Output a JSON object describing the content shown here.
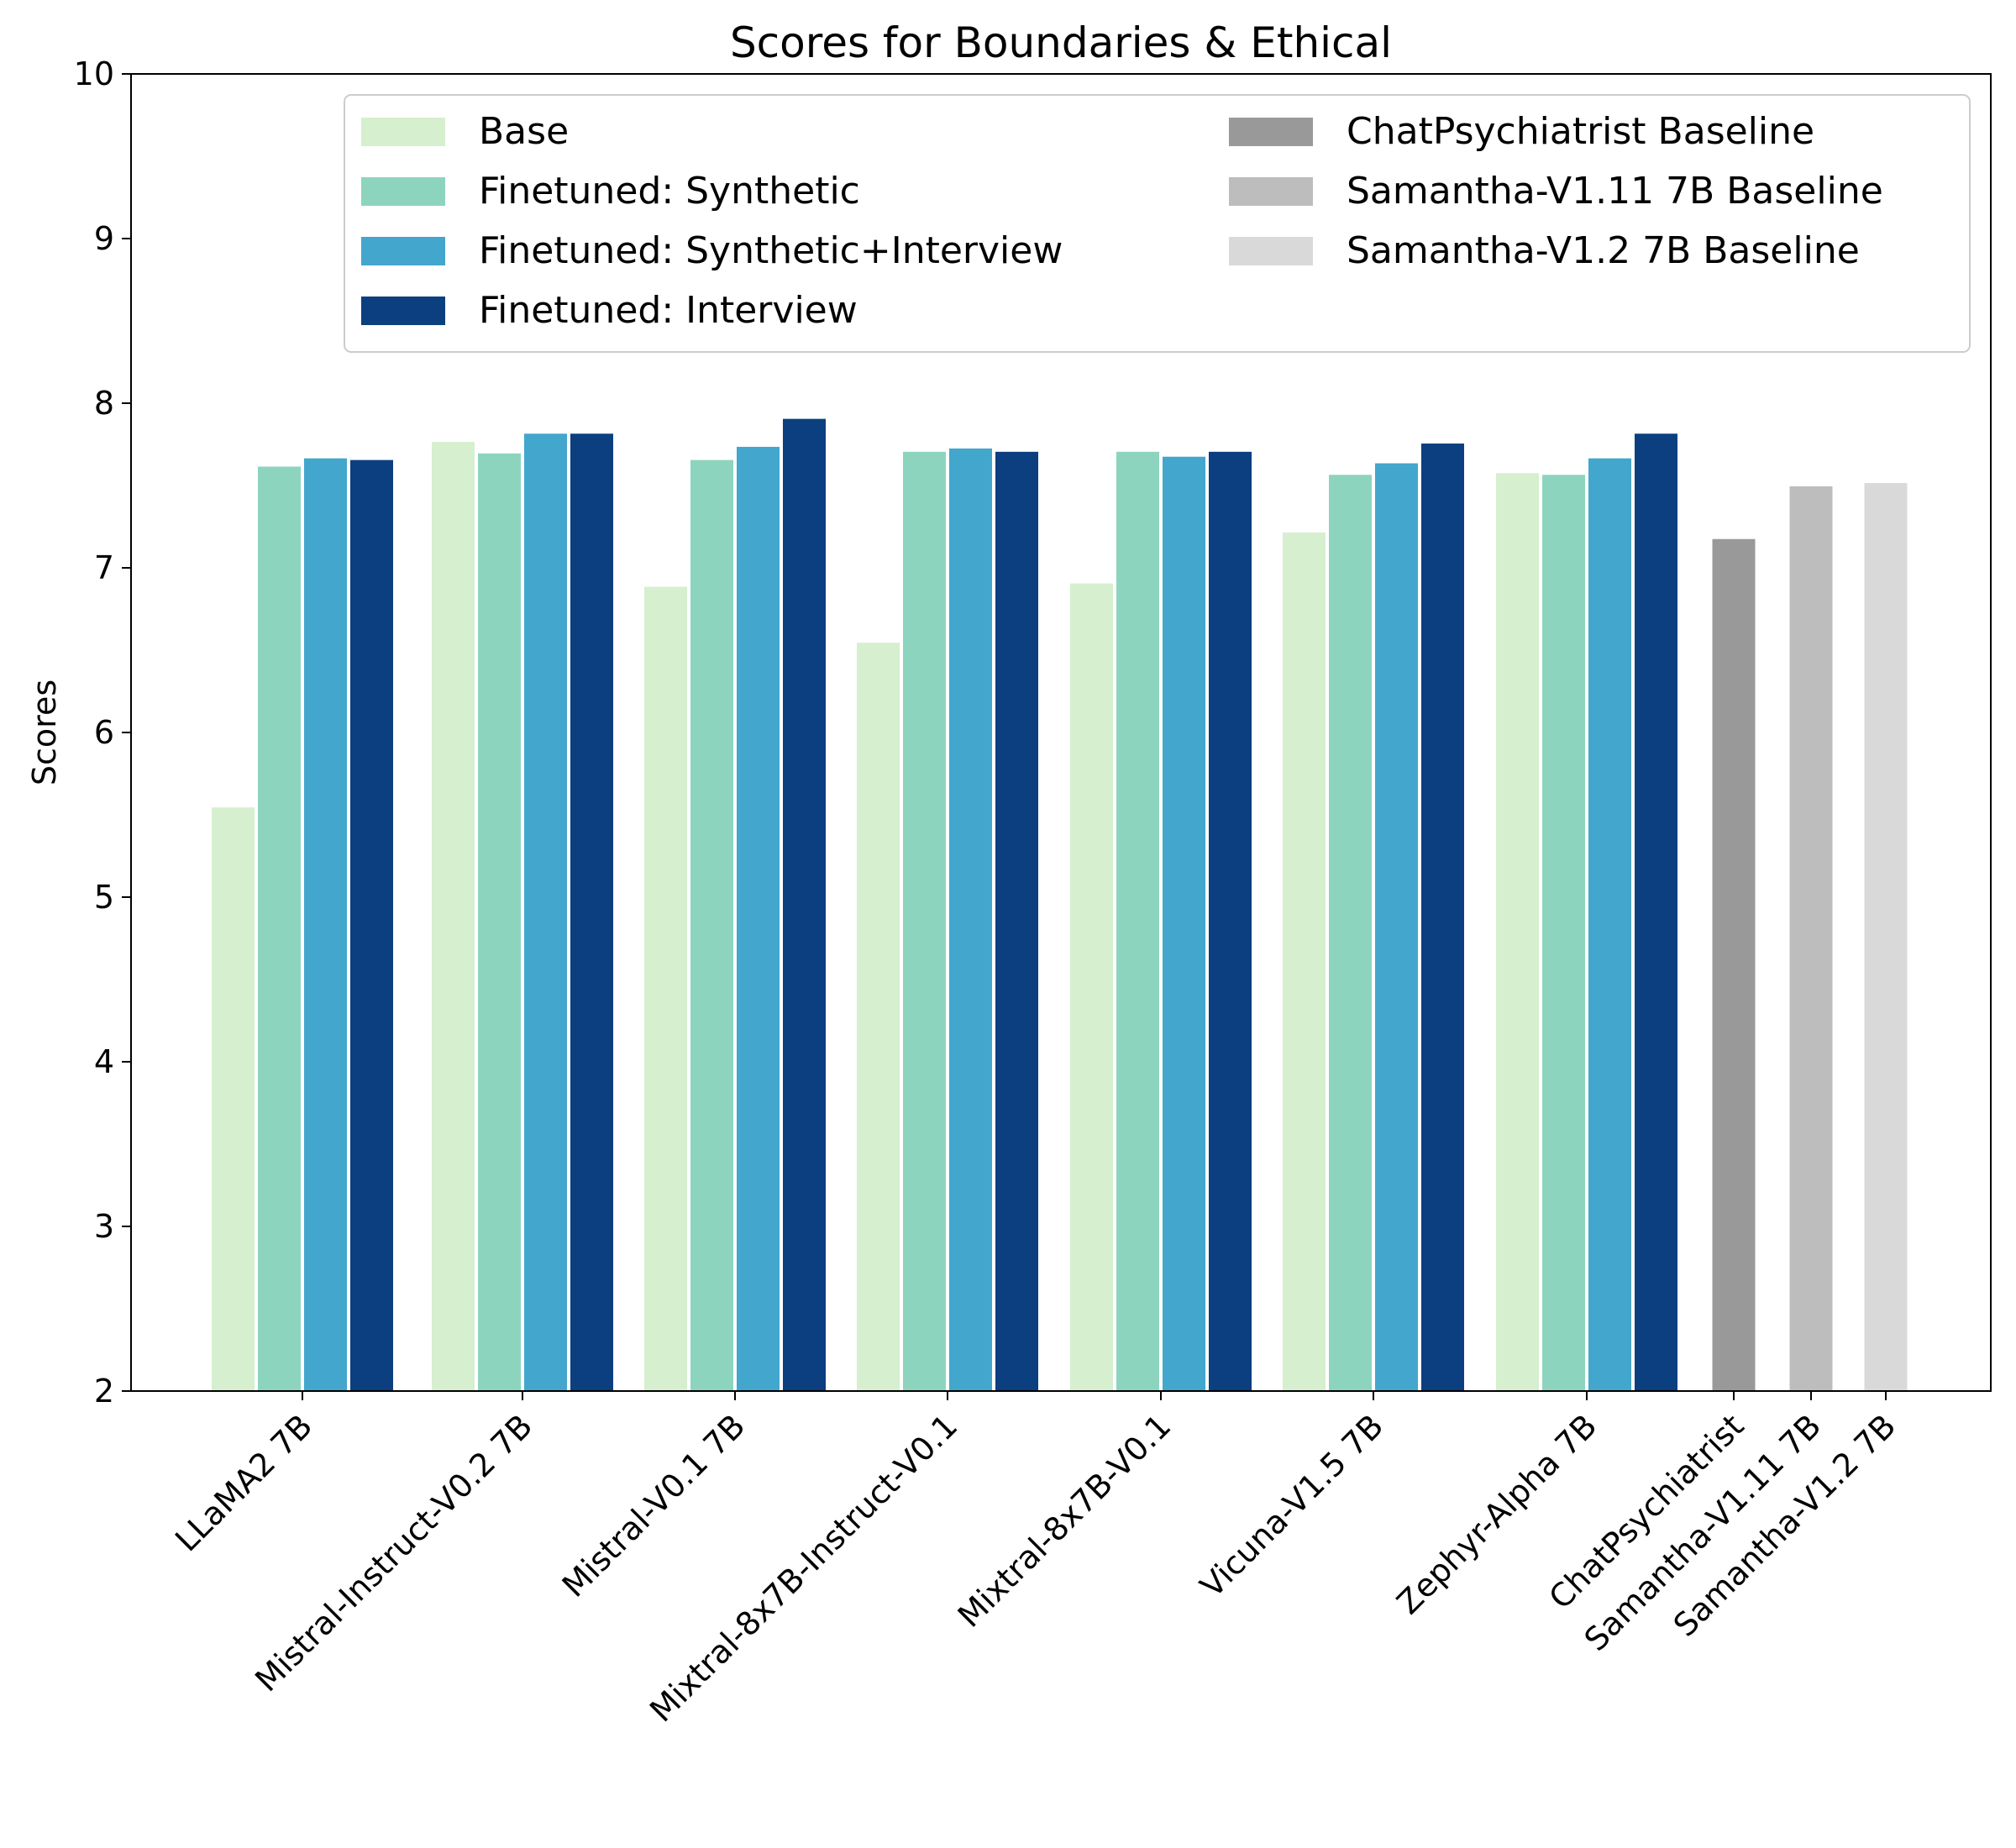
{
  "chart_data": {
    "type": "bar",
    "title": "Scores for Boundaries & Ethical",
    "xlabel": "",
    "ylabel": "Scores",
    "ylim": [
      2,
      10
    ],
    "yticks": [
      2,
      3,
      4,
      5,
      6,
      7,
      8,
      9,
      10
    ],
    "grid": false,
    "legend_position": "top",
    "categories": [
      "LLaMA2 7B",
      "Mistral-Instruct-V0.2 7B",
      "Mistral-V0.1 7B",
      "Mixtral-8x7B-Instruct-V0.1",
      "Mixtral-8x7B-V0.1",
      "Vicuna-V1.5 7B",
      "Zephyr-Alpha 7B",
      "ChatPsychiatrist",
      "Samantha-V1.11 7B",
      "Samantha-V1.2 7B"
    ],
    "series": [
      {
        "name": "Base",
        "color": "#d5efcf",
        "values": [
          5.55,
          7.77,
          6.89,
          6.55,
          6.91,
          7.22,
          7.58,
          null,
          null,
          null
        ]
      },
      {
        "name": "Finetuned: Synthetic",
        "color": "#8dd4bf",
        "values": [
          7.62,
          7.7,
          7.66,
          7.71,
          7.71,
          7.57,
          7.57,
          null,
          null,
          null
        ]
      },
      {
        "name": "Finetuned: Synthetic+Interview",
        "color": "#43a6cc",
        "values": [
          7.67,
          7.82,
          7.74,
          7.73,
          7.68,
          7.64,
          7.67,
          null,
          null,
          null
        ]
      },
      {
        "name": "Finetuned: Interview",
        "color": "#0b3f7f",
        "values": [
          7.66,
          7.82,
          7.91,
          7.71,
          7.71,
          7.76,
          7.82,
          null,
          null,
          null
        ]
      },
      {
        "name": "ChatPsychiatrist Baseline",
        "color": "#999999",
        "values": [
          null,
          null,
          null,
          null,
          null,
          null,
          null,
          7.18,
          null,
          null
        ]
      },
      {
        "name": "Samantha-V1.11 7B Baseline",
        "color": "#bdbdbd",
        "values": [
          null,
          null,
          null,
          null,
          null,
          null,
          null,
          null,
          7.5,
          null
        ]
      },
      {
        "name": "Samantha-V1.2 7B Baseline",
        "color": "#d9d9d9",
        "values": [
          null,
          null,
          null,
          null,
          null,
          null,
          null,
          null,
          null,
          7.52
        ]
      }
    ]
  }
}
